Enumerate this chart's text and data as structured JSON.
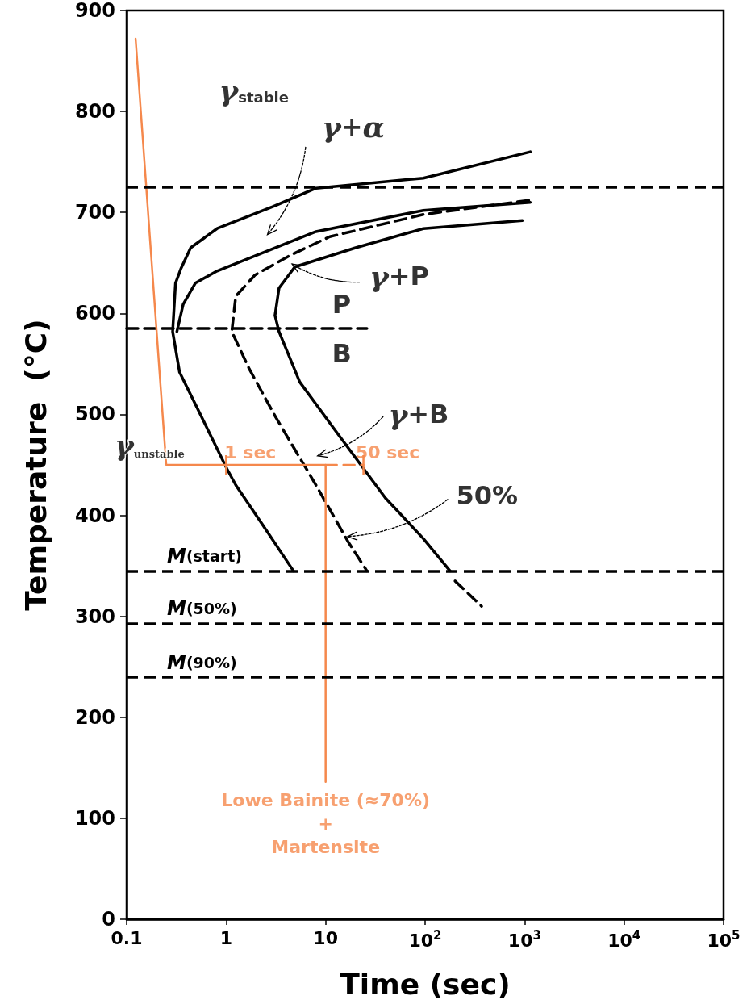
{
  "chart_data": {
    "type": "line",
    "xlabel": "Time (sec)",
    "ylabel": "Temperature  (°C)",
    "log": "x",
    "line_style": "solid",
    "xlim": [
      0.1,
      100000
    ],
    "xticks": [
      0.1,
      1,
      10,
      {
        "value": 100,
        "label": "10$^{2}$"
      },
      {
        "value": 1000,
        "label": "10$^{3}$"
      },
      {
        "value": 10000,
        "label": "10$^{4}$"
      },
      {
        "value": 100000,
        "label": "10$^{5}$"
      }
    ],
    "ylim": [
      0,
      900
    ],
    "yticks": [
      0,
      100,
      200,
      300,
      400,
      500,
      600,
      700,
      800,
      900
    ],
    "series": [
      {
        "color": "#000000",
        "x": [
          1140,
          96,
          8,
          3,
          0.81,
          0.44,
          0.35,
          0.31,
          0.29,
          0.34,
          0.59,
          1.02,
          1.25,
          2.35,
          4.75
        ],
        "values": [
          760,
          734,
          724,
          706,
          684,
          665,
          644,
          630,
          582,
          542,
          494,
          446,
          430,
          390,
          345
        ]
      },
      {
        "color": "#000000",
        "x": [
          1140,
          96,
          8,
          0.81,
          0.49,
          0.37,
          0.32
        ],
        "values": [
          710,
          702,
          681,
          642,
          630,
          609,
          582
        ]
      },
      {
        "color": "#000000",
        "line_style": "dashed",
        "x": [
          1100,
          96,
          11,
          4.3,
          1.95,
          1.25,
          1.14,
          1.71,
          3.16,
          8,
          16.8,
          26
        ],
        "values": [
          712,
          698,
          676,
          657,
          638,
          617,
          582,
          545,
          497,
          430,
          374,
          345
        ]
      },
      {
        "color": "#000000",
        "x": [
          950,
          96,
          20,
          4.9,
          3.4,
          3.1,
          3.4,
          5.5,
          13.2,
          40,
          51,
          96,
          178
        ],
        "values": [
          692,
          684,
          665,
          646,
          625,
          598,
          582,
          532,
          481,
          417,
          406,
          377,
          345
        ]
      },
      {
        "color": "#000000",
        "line_style": "dashed",
        "x": [
          200,
          370
        ],
        "values": [
          335,
          310
        ]
      },
      {
        "color": "#000000",
        "line_style": "dashed",
        "x": [
          0.1,
          26
        ],
        "values": [
          585,
          585
        ]
      },
      {
        "color": "#f5884c",
        "x": [
          0.123,
          0.25,
          10,
          10
        ],
        "values": [
          872,
          450,
          450,
          136
        ]
      },
      {
        "color": "#f5884c",
        "line_style": "dashed",
        "x": [
          10,
          24
        ],
        "values": [
          450,
          450
        ]
      }
    ],
    "ref_lines": [
      {
        "axis": "y",
        "value": 725,
        "line_style": "dashed"
      },
      {
        "axis": "y",
        "value": 345,
        "label": "M(start)",
        "line_style": "dashed"
      },
      {
        "axis": "y",
        "value": 293,
        "label": "M(50%)",
        "line_style": "dashed"
      },
      {
        "axis": "y",
        "value": 240,
        "label": "M(90%)",
        "line_style": "dashed"
      }
    ],
    "annotations": [
      "γ$_{stable}$",
      "γ+α",
      {
        "text": "γ+P",
        "x": 4.6,
        "y": 649
      },
      "P",
      "B",
      "γ+B",
      {
        "text": "50%",
        "x": 16.6,
        "y": 379
      },
      "γ$_{unstable}$",
      {
        "text": "1 sec",
        "x": 1,
        "y": 450
      },
      {
        "text": "50 sec",
        "x": 24,
        "y": 450
      },
      {
        "text": "Lowe Bainite (≈70%)\n+\nMartensite",
        "x": 10,
        "y": 136
      }
    ]
  }
}
